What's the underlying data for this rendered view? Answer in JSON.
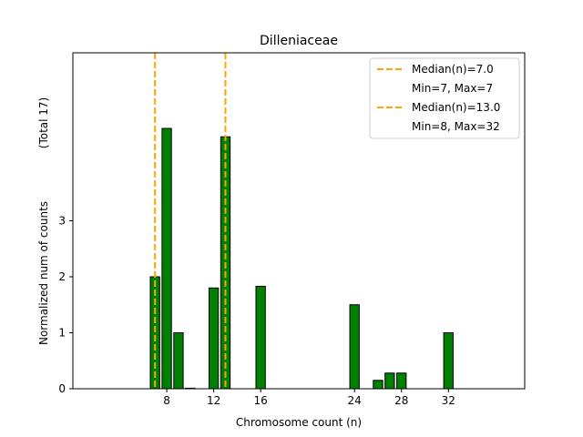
{
  "chart_data": {
    "type": "bar",
    "title": "Dilleniaceae",
    "xlabel": "Chromosome count (n)",
    "ylabel": "Normalized num of counts",
    "ylabel_total": "(Total 17)",
    "xlim": [
      0,
      38.5
    ],
    "ylim": [
      0,
      6
    ],
    "xticks": [
      8,
      12,
      16,
      24,
      28,
      32
    ],
    "yticks": [
      0,
      1,
      2,
      3
    ],
    "bar_color": "#008000",
    "bars": [
      {
        "x": 7,
        "value": 2.0
      },
      {
        "x": 8,
        "value": 4.65
      },
      {
        "x": 9,
        "value": 1.0
      },
      {
        "x": 10,
        "value": 0.01
      },
      {
        "x": 12,
        "value": 1.8
      },
      {
        "x": 13,
        "value": 4.5
      },
      {
        "x": 16,
        "value": 1.83
      },
      {
        "x": 24,
        "value": 1.5
      },
      {
        "x": 26,
        "value": 0.15
      },
      {
        "x": 27,
        "value": 0.28
      },
      {
        "x": 28,
        "value": 0.28
      },
      {
        "x": 32,
        "value": 1.0
      }
    ],
    "median_lines": [
      {
        "x": 7.0,
        "color": "#FFA500"
      },
      {
        "x": 13.0,
        "color": "#FFA500"
      }
    ],
    "legend": {
      "position": "top-right",
      "entries": [
        {
          "label": "Median(n)=7.0",
          "type": "line",
          "color": "#FFA500"
        },
        {
          "label": "Min=7, Max=7",
          "type": "none"
        },
        {
          "label": "Median(n)=13.0",
          "type": "line",
          "color": "#FFA500"
        },
        {
          "label": "Min=8, Max=32",
          "type": "none"
        }
      ]
    }
  }
}
